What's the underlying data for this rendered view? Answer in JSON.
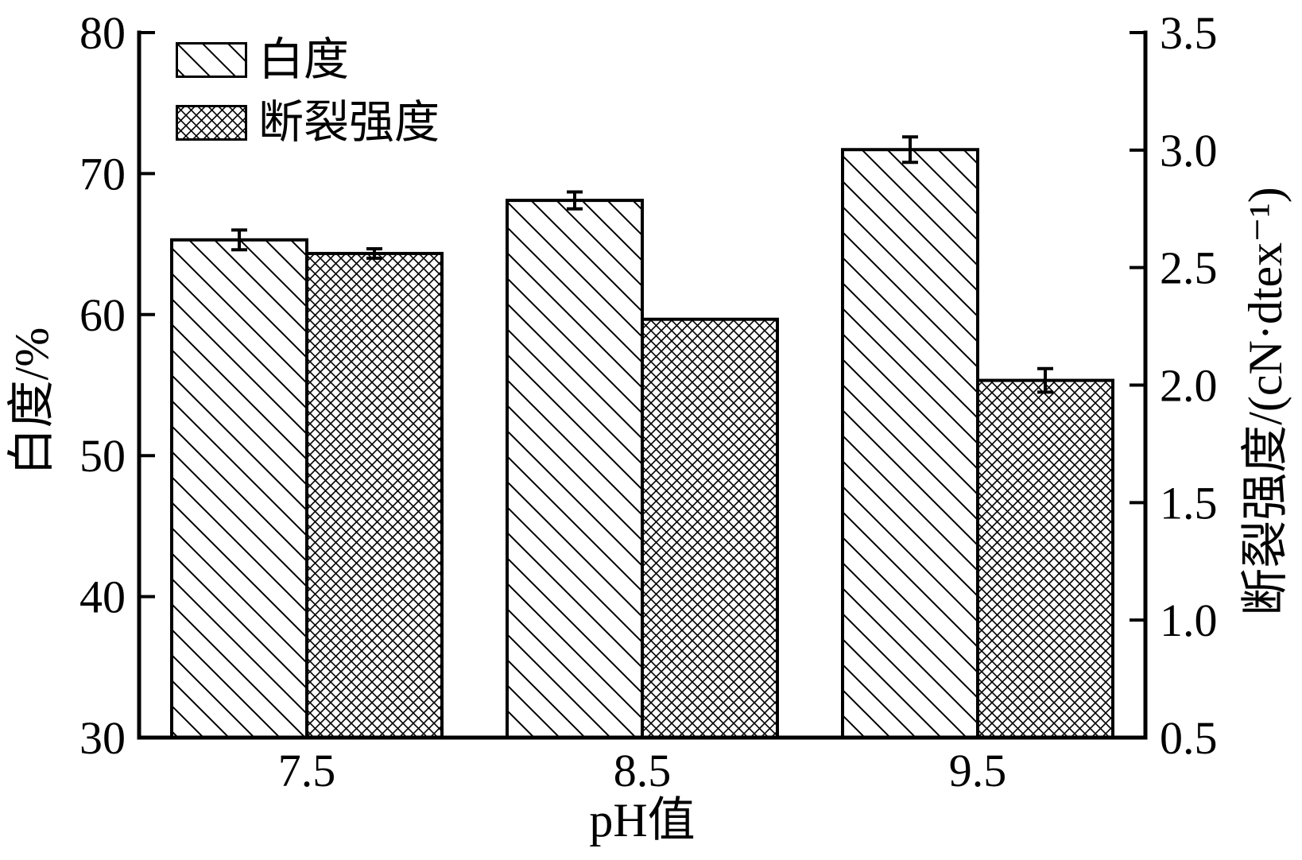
{
  "colors": {
    "foreground": "#000000",
    "background": "#ffffff"
  },
  "chart_data": {
    "type": "bar",
    "title": "",
    "categories": [
      "7.5",
      "8.5",
      "9.5"
    ],
    "xlabel": "pH值",
    "series": [
      {
        "name": "白度",
        "axis": "left",
        "hatch": "diagonal",
        "values": [
          65.3,
          68.1,
          71.7
        ],
        "errors": [
          0.7,
          0.6,
          0.9
        ]
      },
      {
        "name": "断裂强度",
        "axis": "right",
        "hatch": "crosshatch",
        "values": [
          2.56,
          2.28,
          2.02
        ],
        "errors": [
          0.02,
          0,
          0.05
        ]
      }
    ],
    "left_axis": {
      "label": "白度/%",
      "min": 30,
      "max": 80,
      "ticks": [
        "80",
        "70",
        "60",
        "50",
        "40",
        "30"
      ]
    },
    "right_axis": {
      "label": "断裂强度/(cN·dtex⁻¹)",
      "min": 0.5,
      "max": 3.5,
      "ticks": [
        "3.5",
        "3.0",
        "2.5",
        "2.0",
        "1.5",
        "1.0",
        "0.5"
      ]
    },
    "legend": {
      "position": "upper-left",
      "entries": [
        "白度",
        "断裂强度"
      ]
    },
    "grid": false
  }
}
